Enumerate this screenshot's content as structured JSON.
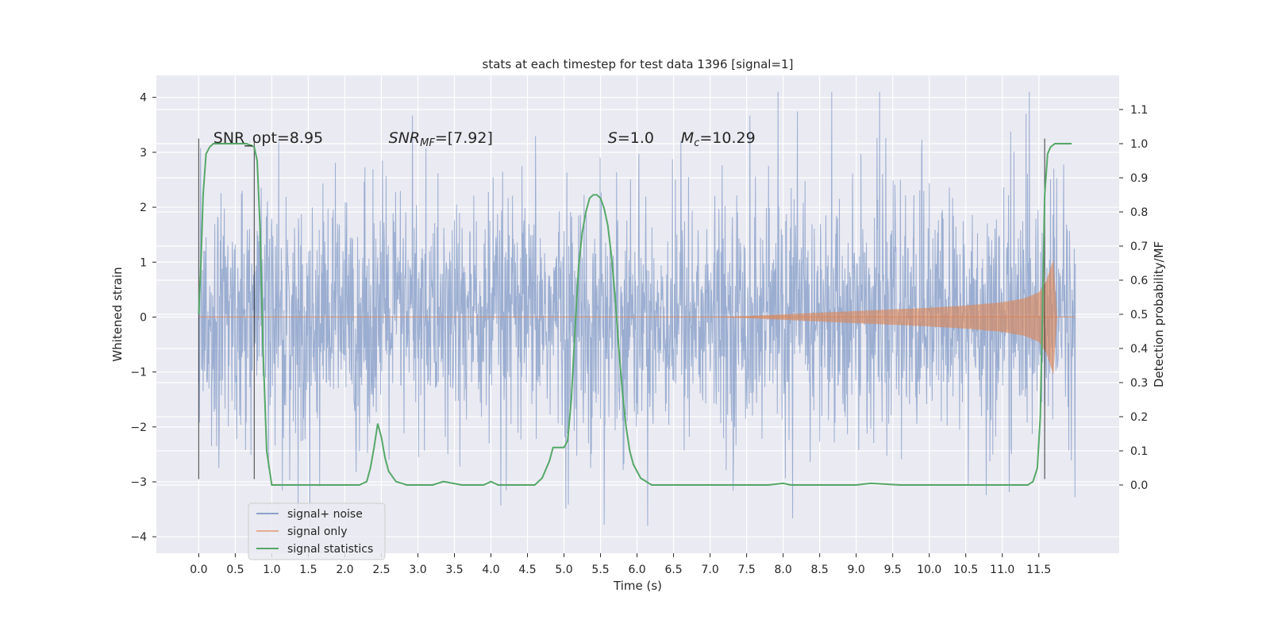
{
  "chart_data": {
    "type": "line",
    "title": "stats at each timestep for test data 1396 [signal=1]",
    "xlabel": "Time (s)",
    "ylabel": "Whitened strain",
    "y2label": "Detection probability/MF",
    "xlim": [
      -0.58,
      12.6
    ],
    "ylim": [
      -4.3,
      4.4
    ],
    "y2lim": [
      -0.2,
      1.2
    ],
    "xticks": [
      "0.0",
      "0.5",
      "1.0",
      "1.5",
      "2.0",
      "2.5",
      "3.0",
      "3.5",
      "4.0",
      "4.5",
      "5.0",
      "5.5",
      "6.0",
      "6.5",
      "7.0",
      "7.5",
      "8.0",
      "8.5",
      "9.0",
      "9.5",
      "10.0",
      "10.5",
      "11.0",
      "11.5"
    ],
    "yticks": [
      "4",
      "3",
      "2",
      "1",
      "0",
      "−1",
      "−2",
      "−3",
      "−4"
    ],
    "y2ticks": [
      "1.1",
      "1.0",
      "0.9",
      "0.8",
      "0.7",
      "0.6",
      "0.5",
      "0.4",
      "0.3",
      "0.2",
      "0.1",
      "0.0"
    ],
    "grid": true,
    "legend_position": "lower-left",
    "colors": {
      "background": "#eaeaf2",
      "grid": "#ffffff",
      "noise": "#4c72b0",
      "signal": "#dd8452",
      "statistics": "#55a868",
      "marker": "#262626"
    },
    "series": [
      {
        "name": "signal+ noise",
        "description_values": {
          "x_range": [
            0.0,
            12.0
          ],
          "typical_amplitude": 1.4,
          "max_spikes": [
            4.1,
            -3.8
          ]
        }
      },
      {
        "name": "signal only",
        "x": [
          0.0,
          7.0,
          7.5,
          8.0,
          8.5,
          9.0,
          9.5,
          10.0,
          10.5,
          11.0,
          11.3,
          11.5,
          11.6,
          11.7,
          11.75,
          12.0
        ],
        "envelope": [
          0.0,
          0.0,
          0.02,
          0.05,
          0.08,
          0.11,
          0.14,
          0.17,
          0.21,
          0.27,
          0.34,
          0.45,
          0.65,
          1.05,
          0.0,
          0.0
        ]
      },
      {
        "name": "signal statistics",
        "x": [
          0.0,
          0.03,
          0.06,
          0.1,
          0.15,
          0.2,
          0.3,
          0.5,
          0.65,
          0.72,
          0.76,
          0.8,
          0.84,
          0.88,
          0.93,
          1.0,
          1.5,
          1.8,
          2.0,
          2.2,
          2.3,
          2.35,
          2.4,
          2.45,
          2.5,
          2.55,
          2.6,
          2.7,
          2.85,
          3.2,
          3.35,
          3.6,
          3.9,
          4.0,
          4.1,
          4.4,
          4.6,
          4.7,
          4.8,
          4.85,
          4.9,
          4.95,
          5.0,
          5.05,
          5.1,
          5.15,
          5.2,
          5.25,
          5.3,
          5.35,
          5.4,
          5.45,
          5.5,
          5.55,
          5.6,
          5.65,
          5.7,
          5.75,
          5.8,
          5.85,
          5.9,
          5.95,
          6.05,
          6.2,
          7.0,
          7.8,
          8.0,
          8.1,
          8.5,
          9.0,
          9.2,
          9.6,
          10.0,
          11.0,
          11.35,
          11.42,
          11.48,
          11.52,
          11.55,
          11.58,
          11.62,
          11.66,
          11.72,
          11.8,
          11.95
        ],
        "values": [
          0.5,
          0.65,
          0.85,
          0.97,
          0.99,
          1.0,
          1.0,
          1.0,
          1.0,
          0.995,
          0.99,
          0.95,
          0.75,
          0.4,
          0.1,
          0.0,
          0.0,
          0.0,
          0.0,
          0.0,
          0.01,
          0.05,
          0.11,
          0.18,
          0.14,
          0.08,
          0.04,
          0.01,
          0.0,
          0.0,
          0.01,
          0.0,
          0.0,
          0.01,
          0.0,
          0.0,
          0.0,
          0.02,
          0.07,
          0.11,
          0.11,
          0.11,
          0.11,
          0.13,
          0.25,
          0.45,
          0.64,
          0.74,
          0.8,
          0.84,
          0.85,
          0.85,
          0.84,
          0.81,
          0.76,
          0.67,
          0.55,
          0.4,
          0.27,
          0.17,
          0.1,
          0.06,
          0.02,
          0.0,
          0.0,
          0.0,
          0.005,
          0.0,
          0.0,
          0.0,
          0.005,
          0.0,
          0.0,
          0.0,
          0.0,
          0.01,
          0.05,
          0.2,
          0.5,
          0.85,
          0.97,
          0.99,
          1.0,
          1.0,
          1.0
        ]
      }
    ],
    "vertical_markers": [
      0.0,
      0.76,
      11.58
    ],
    "annotations": [
      {
        "text": "SNR_opt=8.95",
        "x": 0.2,
        "y": 1.0
      },
      {
        "text": "SNR",
        "sub": "MF",
        "tail": "=[7.92]",
        "x": 2.6,
        "y": 1.0
      },
      {
        "text": "S",
        "tail": "=1.0",
        "x": 5.6,
        "y": 1.0
      },
      {
        "text": "M",
        "sub": "c",
        "tail": "=10.29",
        "x": 6.6,
        "y": 1.0
      }
    ]
  }
}
